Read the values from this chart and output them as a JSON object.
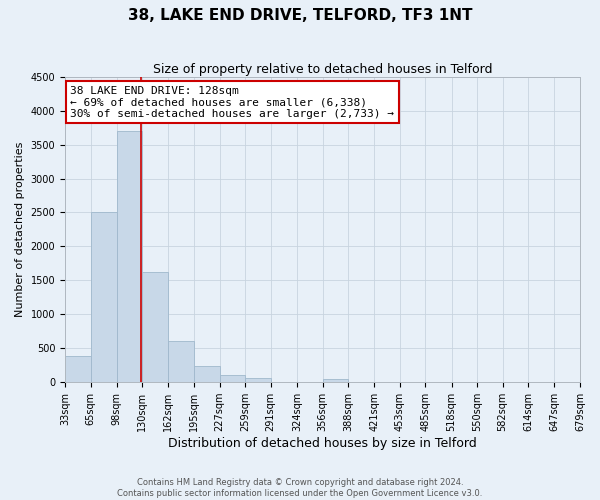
{
  "title": "38, LAKE END DRIVE, TELFORD, TF3 1NT",
  "subtitle": "Size of property relative to detached houses in Telford",
  "xlabel": "Distribution of detached houses by size in Telford",
  "ylabel": "Number of detached properties",
  "bin_edges": [
    33,
    65,
    98,
    130,
    162,
    195,
    227,
    259,
    291,
    324,
    356,
    388,
    421,
    453,
    485,
    518,
    550,
    582,
    614,
    647,
    679
  ],
  "counts": [
    380,
    2500,
    3700,
    1620,
    600,
    240,
    100,
    60,
    0,
    0,
    50,
    0,
    0,
    0,
    0,
    0,
    0,
    0,
    0,
    0
  ],
  "bar_color": "#c8d8e8",
  "bar_edge_color": "#a0b8cc",
  "vline_x": 128,
  "vline_color": "#cc0000",
  "annotation_line1": "38 LAKE END DRIVE: 128sqm",
  "annotation_line2": "← 69% of detached houses are smaller (6,338)",
  "annotation_line3": "30% of semi-detached houses are larger (2,733) →",
  "annotation_box_color": "#ffffff",
  "annotation_box_edge": "#cc0000",
  "ylim": [
    0,
    4500
  ],
  "yticks": [
    0,
    500,
    1000,
    1500,
    2000,
    2500,
    3000,
    3500,
    4000,
    4500
  ],
  "xtick_labels": [
    "33sqm",
    "65sqm",
    "98sqm",
    "130sqm",
    "162sqm",
    "195sqm",
    "227sqm",
    "259sqm",
    "291sqm",
    "324sqm",
    "356sqm",
    "388sqm",
    "421sqm",
    "453sqm",
    "485sqm",
    "518sqm",
    "550sqm",
    "582sqm",
    "614sqm",
    "647sqm",
    "679sqm"
  ],
  "grid_color": "#c8d4df",
  "background_color": "#e8f0f8",
  "footnote": "Contains HM Land Registry data © Crown copyright and database right 2024.\nContains public sector information licensed under the Open Government Licence v3.0.",
  "title_fontsize": 11,
  "subtitle_fontsize": 9,
  "xlabel_fontsize": 9,
  "ylabel_fontsize": 8,
  "annotation_fontsize": 8,
  "tick_fontsize": 7
}
